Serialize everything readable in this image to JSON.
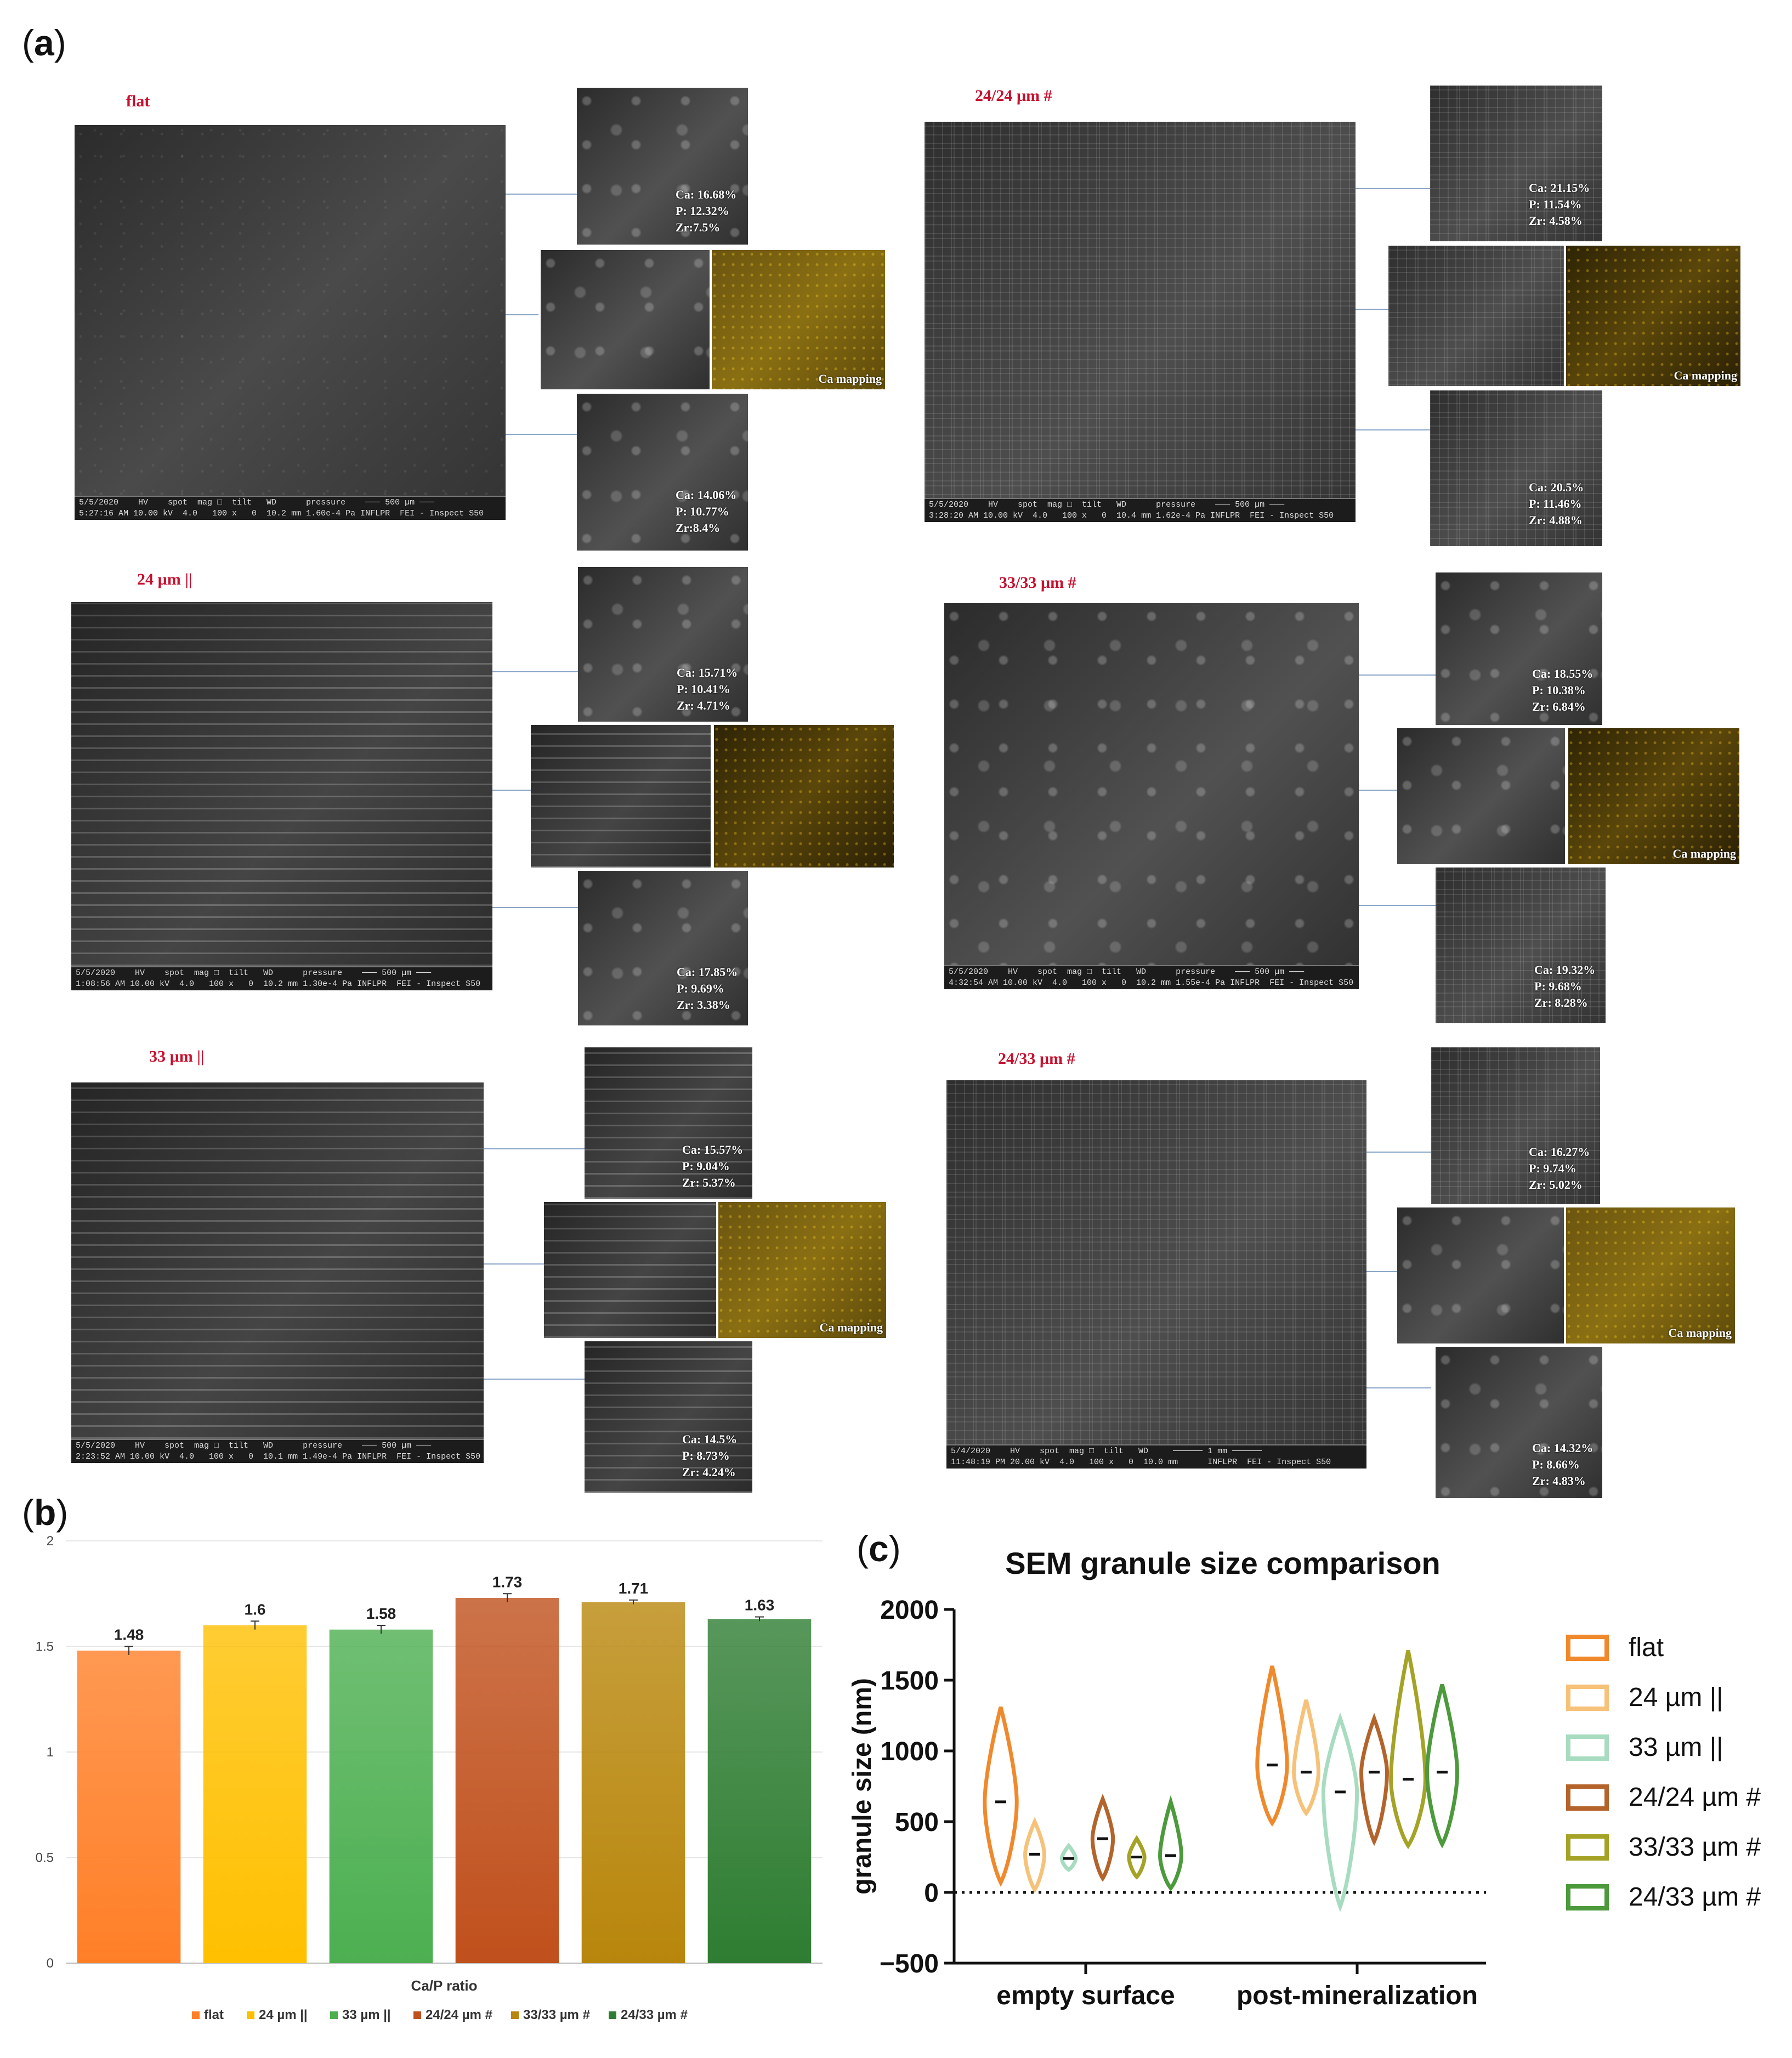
{
  "panel_a": {
    "label_open": "(",
    "label_letter": "a",
    "label_close": ")",
    "samples": [
      {
        "title": "flat",
        "infobar": "5/5/2020    HV    spot  mag □  tilt   WD      pressure    ─── 500 µm ───\n5:27:16 AM 10.00 kV  4.0   100 x   0  10.2 mm 1.60e-4 Pa INFLPR  FEI - Inspect S50",
        "top": [
          "Ca: 16.68%",
          "P: 12.32%",
          "Zr:7.5%"
        ],
        "bottom": [
          "Ca: 14.06%",
          "P: 10.77%",
          "Zr:8.4%"
        ],
        "mapping": "Ca mapping"
      },
      {
        "title": "24/24 µm #",
        "infobar": "5/5/2020    HV    spot  mag □  tilt   WD      pressure    ─── 500 µm ───\n3:28:20 AM 10.00 kV  4.0   100 x   0  10.4 mm 1.62e-4 Pa INFLPR  FEI - Inspect S50",
        "top": [
          "Ca: 21.15%",
          "P: 11.54%",
          "Zr: 4.58%"
        ],
        "bottom": [
          "Ca: 20.5%",
          "P: 11.46%",
          "Zr: 4.88%"
        ],
        "mapping": "Ca mapping"
      },
      {
        "title": "24 µm ||",
        "infobar": "5/5/2020    HV    spot  mag □  tilt   WD      pressure    ─── 500 µm ───\n1:08:56 AM 10.00 kV  4.0   100 x   0  10.2 mm 1.30e-4 Pa INFLPR  FEI - Inspect S50",
        "top": [
          "Ca: 15.71%",
          "P: 10.41%",
          "Zr: 4.71%"
        ],
        "bottom": [
          "Ca: 17.85%",
          "P: 9.69%",
          "Zr: 3.38%"
        ],
        "mapping": ""
      },
      {
        "title": "33/33 µm #",
        "infobar": "5/5/2020    HV    spot  mag □  tilt   WD      pressure    ─── 500 µm ───\n4:32:54 AM 10.00 kV  4.0   100 x   0  10.2 mm 1.55e-4 Pa INFLPR  FEI - Inspect S50",
        "top": [
          "Ca: 18.55%",
          "P: 10.38%",
          "Zr: 6.84%"
        ],
        "bottom": [
          "Ca: 19.32%",
          "P: 9.68%",
          "Zr: 8.28%"
        ],
        "mapping": "Ca mapping"
      },
      {
        "title": "33 µm ||",
        "infobar": "5/5/2020    HV    spot  mag □  tilt   WD      pressure    ─── 500 µm ───\n2:23:52 AM 10.00 kV  4.0   100 x   0  10.1 mm 1.49e-4 Pa INFLPR  FEI - Inspect S50",
        "top": [
          "Ca: 15.57%",
          "P: 9.04%",
          "Zr: 5.37%"
        ],
        "bottom": [
          "Ca: 14.5%",
          "P: 8.73%",
          "Zr: 4.24%"
        ],
        "mapping": "Ca mapping"
      },
      {
        "title": "24/33 µm #",
        "infobar": "5/4/2020    HV    spot  mag □  tilt   WD     ────── 1 mm ──────\n11:48:19 PM 20.00 kV  4.0   100 x   0  10.0 mm      INFLPR  FEI - Inspect S50",
        "top": [
          "Ca: 16.27%",
          "P: 9.74%",
          "Zr: 5.02%"
        ],
        "bottom": [
          "Ca: 14.32%",
          "P: 8.66%",
          "Zr: 4.83%"
        ],
        "mapping": "Ca mapping"
      }
    ]
  },
  "panel_b": {
    "label_open": "(",
    "label_letter": "b",
    "label_close": ")",
    "value_labels": [
      "1.48",
      "1.6",
      "1.58",
      "1.73",
      "1.71",
      "1.63"
    ],
    "y_ticks": [
      "2",
      "1.5",
      "1",
      "0.5",
      "0"
    ],
    "legend": [
      "flat",
      "24 µm ||",
      "33 µm ||",
      "24/24 µm #",
      "33/33 µm #",
      "24/33 µm #"
    ]
  },
  "panel_c": {
    "label_open": "(",
    "label_letter": "c",
    "label_close": ")",
    "y_ticks": [
      "2000",
      "1500",
      "1000",
      "500",
      "0",
      "−500"
    ],
    "legend": [
      "flat",
      "24 µm ||",
      "33 µm ||",
      "24/24 µm #",
      "33/33 µm #",
      "24/33 µm #"
    ]
  },
  "chart_data": [
    {
      "type": "bar",
      "title": "",
      "xlabel": "Ca/P ratio",
      "ylabel": "",
      "ylim": [
        0,
        2
      ],
      "categories": [
        "flat",
        "24 µm ||",
        "33 µm ||",
        "24/24 µm #",
        "33/33 µm #",
        "24/33 µm #"
      ],
      "values": [
        1.48,
        1.6,
        1.58,
        1.73,
        1.71,
        1.63
      ],
      "errors": [
        0.02,
        0.02,
        0.02,
        0.02,
        0.01,
        0.01
      ],
      "colors": [
        "#ff7f27",
        "#ffc000",
        "#4caf50",
        "#c0501c",
        "#b8860b",
        "#2e7d32"
      ]
    },
    {
      "type": "violin",
      "title": "SEM granule size comparison",
      "xlabel": "",
      "ylabel": "granule size (nm)",
      "ylim": [
        -500,
        2000
      ],
      "groups": [
        "empty surface",
        "post-mineralization"
      ],
      "series": [
        {
          "name": "flat",
          "color": "#f0892c",
          "min": [
            70,
            490
          ],
          "max": [
            1310,
            1600
          ],
          "median": [
            640,
            900
          ]
        },
        {
          "name": "24 µm ||",
          "color": "#f6c27a",
          "min": [
            20,
            560
          ],
          "max": [
            500,
            1360
          ],
          "median": [
            270,
            850
          ]
        },
        {
          "name": "33 µm ||",
          "color": "#a8dcc0",
          "min": [
            160,
            -100
          ],
          "max": [
            330,
            1230
          ],
          "median": [
            240,
            710
          ]
        },
        {
          "name": "24/24 µm #",
          "color": "#b4642b",
          "min": [
            100,
            360
          ],
          "max": [
            660,
            1230
          ],
          "median": [
            380,
            850
          ]
        },
        {
          "name": "33/33 µm #",
          "color": "#a4a326",
          "min": [
            110,
            330
          ],
          "max": [
            380,
            1710
          ],
          "median": [
            250,
            800
          ]
        },
        {
          "name": "24/33 µm #",
          "color": "#4c9a3c",
          "min": [
            30,
            340
          ],
          "max": [
            640,
            1470
          ],
          "median": [
            260,
            850
          ]
        }
      ]
    }
  ]
}
